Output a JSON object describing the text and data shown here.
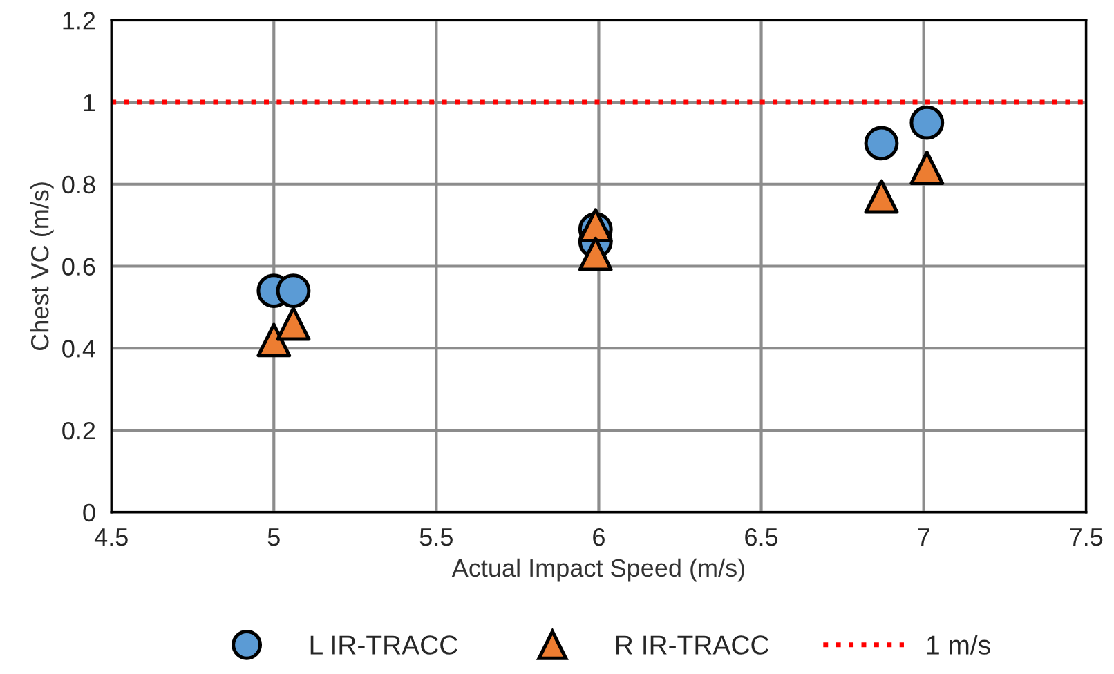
{
  "chart_data": {
    "type": "scatter",
    "xlabel": "Actual Impact Speed (m/s)",
    "ylabel": "Chest VC (m/s)",
    "series": [
      {
        "name": "L IR-TRACC",
        "color": "#5b9bd5",
        "marker": "circle",
        "x": [
          5.0,
          5.06,
          5.99,
          5.99,
          6.87,
          7.01
        ],
        "values": [
          0.54,
          0.54,
          0.69,
          0.66,
          0.9,
          0.95
        ]
      },
      {
        "name": "R IR-TRACC",
        "color": "#ed7d31",
        "marker": "triangle",
        "x": [
          5.0,
          5.06,
          5.99,
          5.99,
          6.87,
          7.01
        ],
        "values": [
          0.42,
          0.46,
          0.7,
          0.63,
          0.77,
          0.84
        ]
      }
    ],
    "ref_lines": [
      {
        "axis": "y",
        "value": 1,
        "label": "1 m/s",
        "color": "#ff0000",
        "line_style": "dotted"
      }
    ],
    "xlim": [
      4.5,
      7.5
    ],
    "xticks": [
      4.5,
      5,
      5.5,
      6,
      6.5,
      7,
      7.5
    ],
    "ylim": [
      0,
      1.2
    ],
    "yticks": [
      0,
      0.2,
      0.4,
      0.6,
      0.8,
      1,
      1.2
    ],
    "grid": true,
    "legend": "bottom"
  }
}
